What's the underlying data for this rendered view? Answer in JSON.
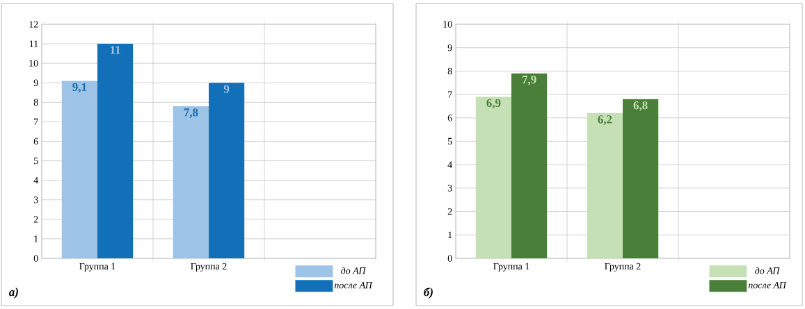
{
  "chart_data": [
    {
      "type": "bar",
      "categories": [
        "Группа 1",
        "Группа 2",
        null
      ],
      "ylim": [
        0,
        12
      ],
      "yticks": [
        0,
        1,
        2,
        3,
        4,
        5,
        6,
        7,
        8,
        9,
        10,
        11,
        12
      ],
      "grid": true,
      "legend": "bottom right",
      "annotations": [
        "а)"
      ],
      "series": [
        {
          "name": "до АП",
          "color": "#9dc3e6",
          "values": [
            9.1,
            7.8,
            null
          ],
          "value_labels": [
            "9,1",
            "7,8",
            null
          ]
        },
        {
          "name": "после АП",
          "color": "#1170b8",
          "values": [
            11,
            9,
            null
          ],
          "value_labels": [
            "11",
            "9",
            null
          ]
        }
      ]
    },
    {
      "type": "bar",
      "categories": [
        "Группа 1",
        "Группа 2",
        null
      ],
      "ylim": [
        0,
        10
      ],
      "yticks": [
        0,
        1,
        2,
        3,
        4,
        5,
        6,
        7,
        8,
        9,
        10
      ],
      "grid": true,
      "legend": "bottom right",
      "annotations": [
        "б)"
      ],
      "series": [
        {
          "name": "до АП",
          "color": "#c5e0b4",
          "values": [
            6.9,
            6.2,
            null
          ],
          "value_labels": [
            "6,9",
            "6,2",
            null
          ]
        },
        {
          "name": "после АП",
          "color": "#4a7f3a",
          "values": [
            7.9,
            6.8,
            null
          ],
          "value_labels": [
            "7,9",
            "6,8",
            null
          ]
        }
      ]
    }
  ]
}
